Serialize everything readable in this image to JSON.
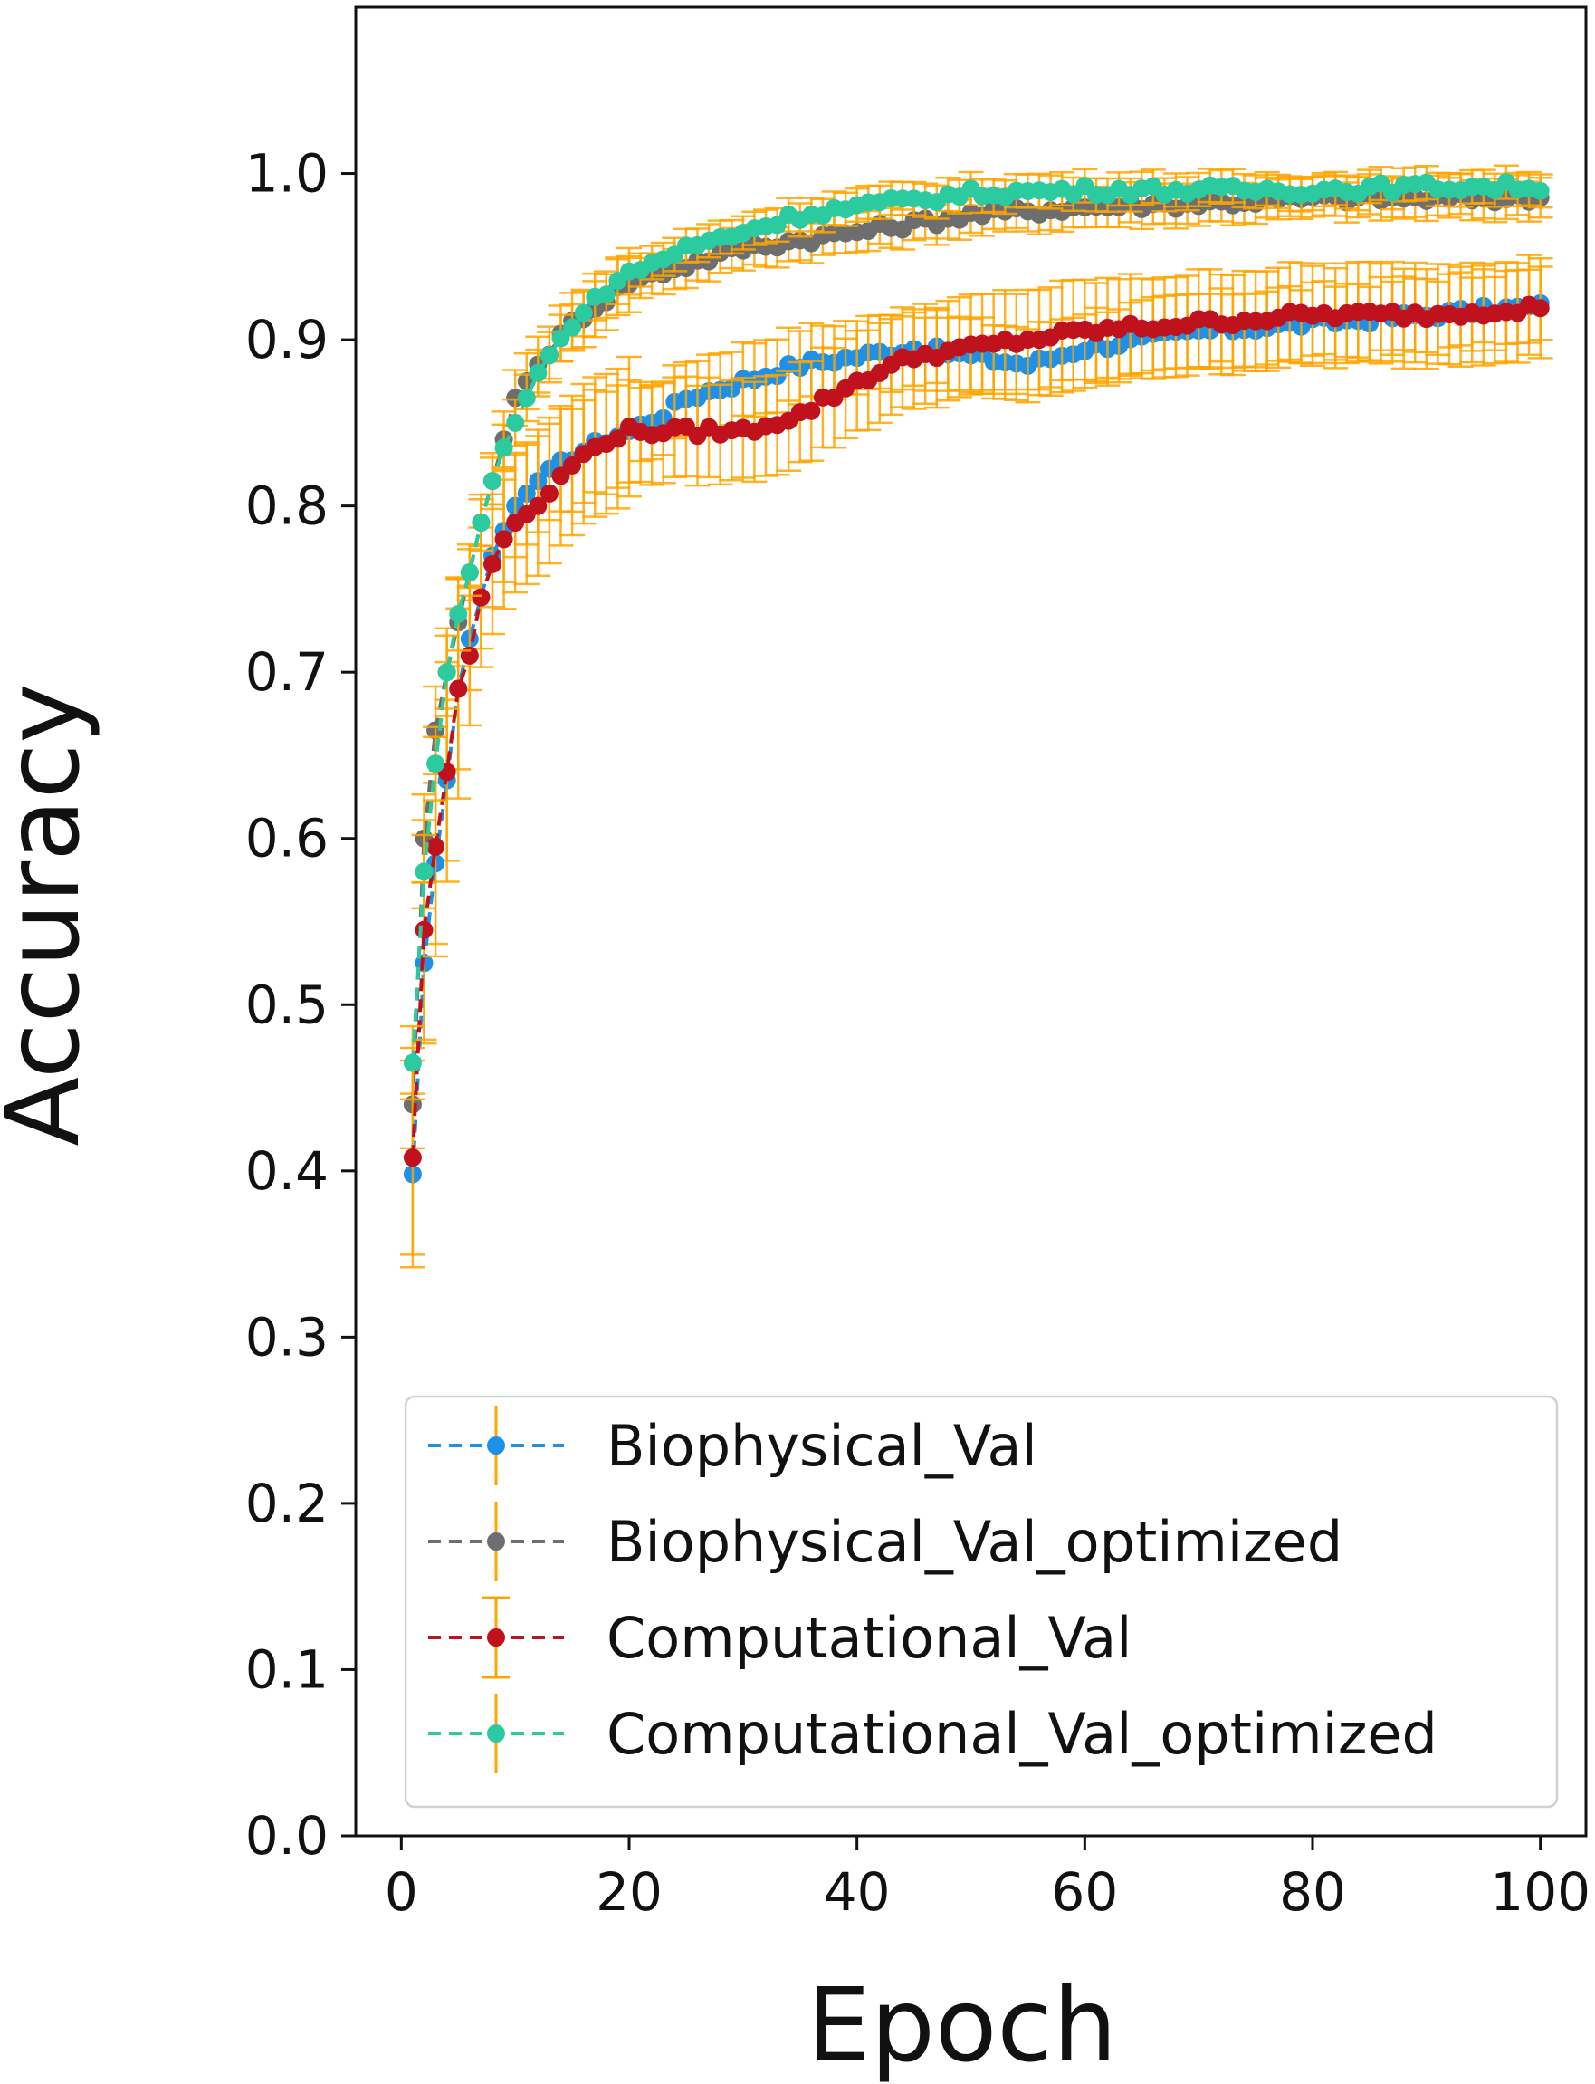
{
  "chart_data": {
    "type": "line",
    "xlabel": "Epoch",
    "ylabel": "Accuracy",
    "xlim": [
      -4,
      104
    ],
    "ylim": [
      0.0,
      1.1
    ],
    "xticks": [
      "0",
      "20",
      "40",
      "60",
      "80",
      "100"
    ],
    "xtick_values": [
      0,
      20,
      40,
      60,
      80,
      100
    ],
    "yticks": [
      "0.0",
      "0.1",
      "0.2",
      "0.3",
      "0.4",
      "0.5",
      "0.6",
      "0.7",
      "0.8",
      "0.9",
      "1.0"
    ],
    "ytick_values": [
      0.0,
      0.1,
      0.2,
      0.3,
      0.4,
      0.5,
      0.6,
      0.7,
      0.8,
      0.9,
      1.0
    ],
    "legend_position": "lower-right",
    "error_bar_color": "#FFA500",
    "series": [
      {
        "name": "Biophysical_Val",
        "color": "#1E90E8",
        "error": 0.022,
        "anchors": [
          [
            1,
            0.398
          ],
          [
            2,
            0.525
          ],
          [
            3,
            0.585
          ],
          [
            4,
            0.635
          ],
          [
            5,
            0.69
          ],
          [
            6,
            0.72
          ],
          [
            7,
            0.745
          ],
          [
            8,
            0.77
          ],
          [
            9,
            0.785
          ],
          [
            10,
            0.8
          ],
          [
            12,
            0.815
          ],
          [
            15,
            0.83
          ],
          [
            18,
            0.84
          ],
          [
            20,
            0.845
          ],
          [
            23,
            0.855
          ],
          [
            25,
            0.865
          ],
          [
            30,
            0.875
          ],
          [
            35,
            0.885
          ],
          [
            40,
            0.89
          ],
          [
            45,
            0.895
          ],
          [
            50,
            0.89
          ],
          [
            55,
            0.885
          ],
          [
            60,
            0.895
          ],
          [
            70,
            0.905
          ],
          [
            80,
            0.91
          ],
          [
            90,
            0.915
          ],
          [
            100,
            0.92
          ]
        ]
      },
      {
        "name": "Biophysical_Val_optimized",
        "color": "#6E6E6E",
        "error": 0.012,
        "anchors": [
          [
            1,
            0.44
          ],
          [
            2,
            0.6
          ],
          [
            3,
            0.665
          ],
          [
            4,
            0.7
          ],
          [
            5,
            0.73
          ],
          [
            6,
            0.76
          ],
          [
            7,
            0.79
          ],
          [
            8,
            0.815
          ],
          [
            9,
            0.84
          ],
          [
            10,
            0.865
          ],
          [
            12,
            0.885
          ],
          [
            15,
            0.91
          ],
          [
            18,
            0.925
          ],
          [
            20,
            0.935
          ],
          [
            25,
            0.945
          ],
          [
            30,
            0.955
          ],
          [
            35,
            0.96
          ],
          [
            40,
            0.965
          ],
          [
            50,
            0.975
          ],
          [
            60,
            0.98
          ],
          [
            70,
            0.982
          ],
          [
            80,
            0.985
          ],
          [
            90,
            0.985
          ],
          [
            100,
            0.985
          ]
        ]
      },
      {
        "name": "Computational_Val",
        "color": "#C0121C",
        "error": 0.03,
        "anchors": [
          [
            1,
            0.408
          ],
          [
            2,
            0.545
          ],
          [
            3,
            0.595
          ],
          [
            4,
            0.64
          ],
          [
            5,
            0.69
          ],
          [
            6,
            0.71
          ],
          [
            7,
            0.745
          ],
          [
            8,
            0.765
          ],
          [
            9,
            0.78
          ],
          [
            10,
            0.79
          ],
          [
            12,
            0.8
          ],
          [
            15,
            0.825
          ],
          [
            18,
            0.84
          ],
          [
            20,
            0.845
          ],
          [
            25,
            0.845
          ],
          [
            30,
            0.845
          ],
          [
            35,
            0.855
          ],
          [
            40,
            0.875
          ],
          [
            45,
            0.89
          ],
          [
            50,
            0.895
          ],
          [
            55,
            0.9
          ],
          [
            60,
            0.905
          ],
          [
            70,
            0.91
          ],
          [
            80,
            0.915
          ],
          [
            90,
            0.915
          ],
          [
            100,
            0.92
          ]
        ]
      },
      {
        "name": "Computational_Val_optimized",
        "color": "#2CCB9F",
        "error": 0.01,
        "anchors": [
          [
            1,
            0.465
          ],
          [
            2,
            0.58
          ],
          [
            3,
            0.645
          ],
          [
            4,
            0.7
          ],
          [
            5,
            0.735
          ],
          [
            6,
            0.76
          ],
          [
            7,
            0.79
          ],
          [
            8,
            0.815
          ],
          [
            9,
            0.835
          ],
          [
            10,
            0.85
          ],
          [
            12,
            0.88
          ],
          [
            15,
            0.91
          ],
          [
            18,
            0.93
          ],
          [
            20,
            0.94
          ],
          [
            25,
            0.955
          ],
          [
            30,
            0.965
          ],
          [
            35,
            0.975
          ],
          [
            40,
            0.98
          ],
          [
            50,
            0.988
          ],
          [
            60,
            0.99
          ],
          [
            70,
            0.99
          ],
          [
            80,
            0.99
          ],
          [
            90,
            0.992
          ],
          [
            100,
            0.992
          ]
        ]
      }
    ]
  }
}
